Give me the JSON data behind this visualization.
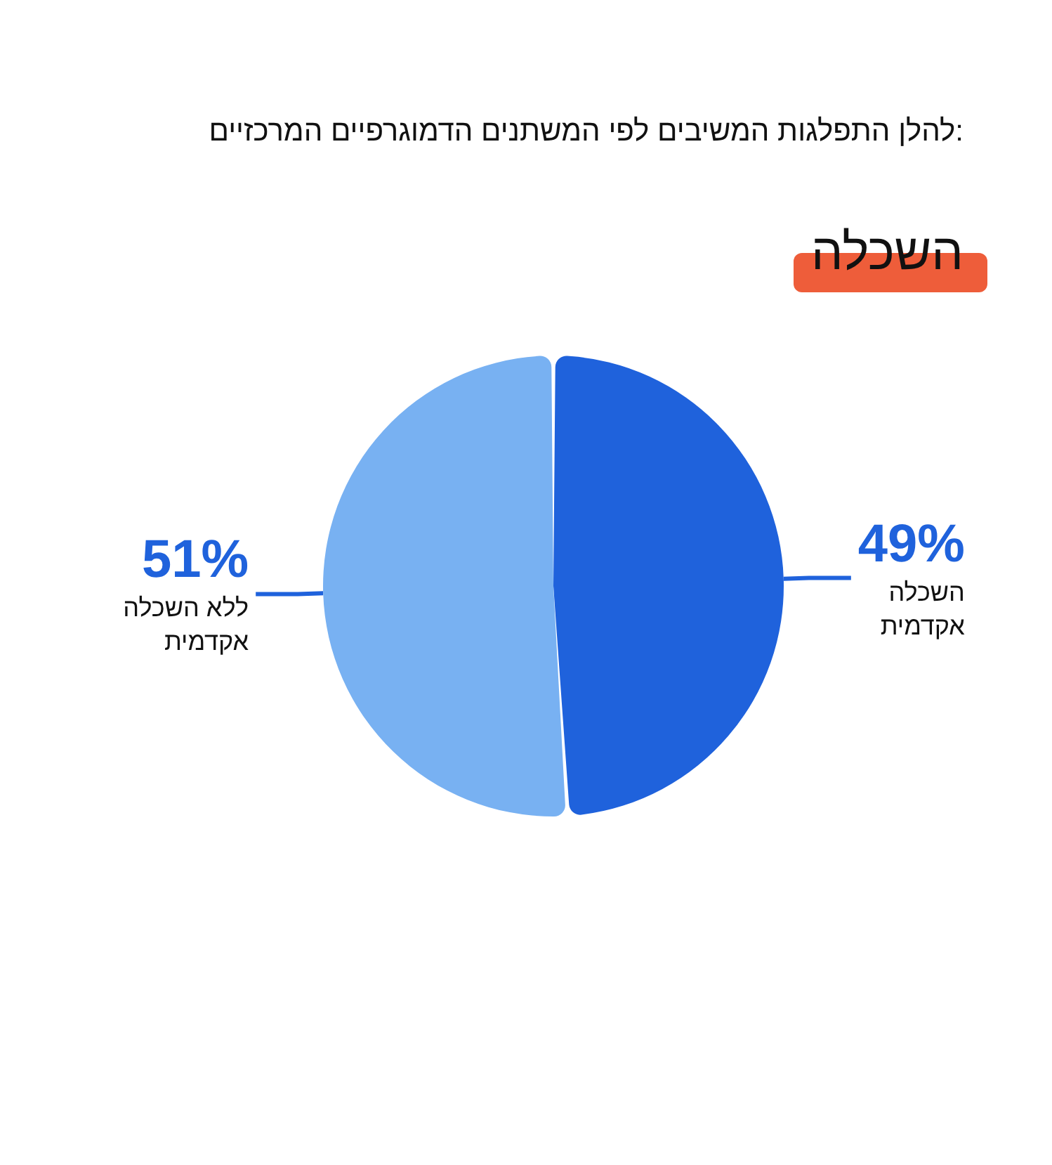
{
  "chart_data": {
    "type": "pie",
    "title": "להלן התפלגות המשיבים לפי המשתנים הדמוגרפיים המרכזיים:",
    "subtitle": "השכלה",
    "categories": [
      "השכלה אקדמית",
      "ללא השכלה אקדמית"
    ],
    "values": [
      49,
      51
    ],
    "colors": [
      "#1f62dc",
      "#78b1f2"
    ],
    "value_labels": [
      "49%",
      "51%"
    ],
    "legend": false
  }
}
